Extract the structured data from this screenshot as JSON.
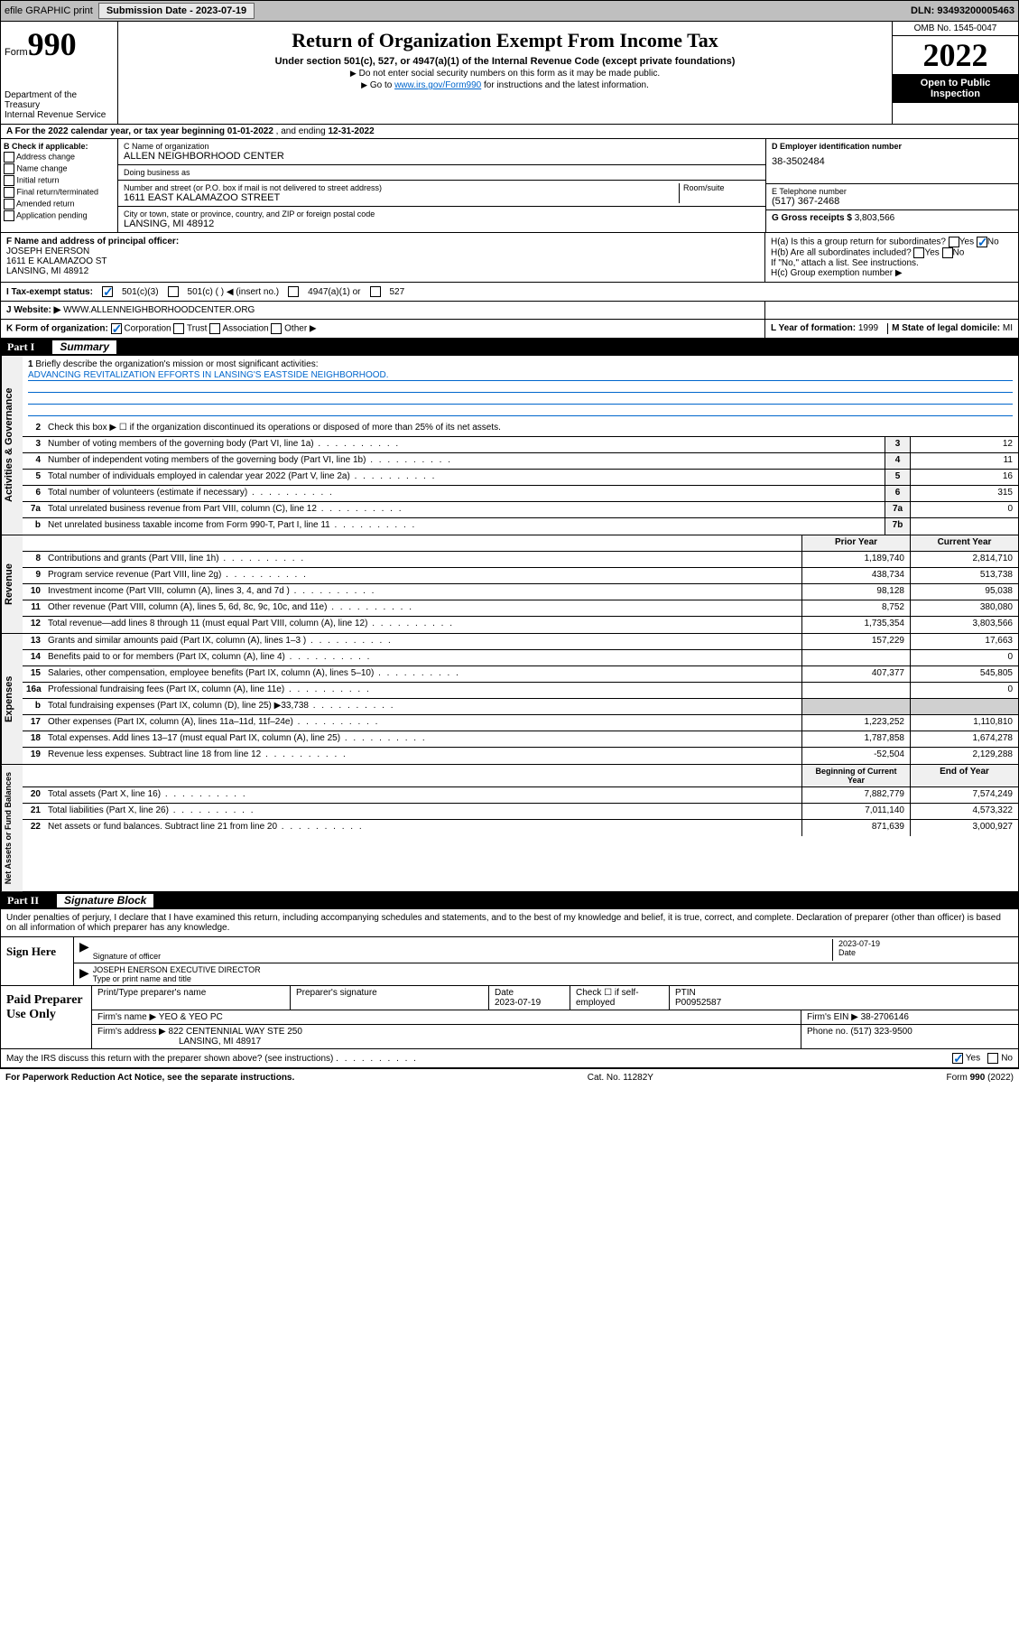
{
  "topbar": {
    "efile": "efile GRAPHIC print",
    "subDate_lbl": "Submission Date - ",
    "subDate": "2023-07-19",
    "dln_lbl": "DLN: ",
    "dln": "93493200005463"
  },
  "header": {
    "form_lbl": "Form",
    "form_num": "990",
    "title": "Return of Organization Exempt From Income Tax",
    "sub": "Under section 501(c), 527, or 4947(a)(1) of the Internal Revenue Code (except private foundations)",
    "note1": "Do not enter social security numbers on this form as it may be made public.",
    "note2_pre": "Go to ",
    "note2_link": "www.irs.gov/Form990",
    "note2_post": " for instructions and the latest information.",
    "dept": "Department of the Treasury\nInternal Revenue Service",
    "omb": "OMB No. 1545-0047",
    "year": "2022",
    "inspect": "Open to Public Inspection"
  },
  "rowA": {
    "pre": "A For the 2022 calendar year, or tax year beginning ",
    "begin": "01-01-2022",
    "mid": " , and ending ",
    "end": "12-31-2022"
  },
  "checkB": {
    "lbl": "B Check if applicable:",
    "items": [
      "Address change",
      "Name change",
      "Initial return",
      "Final return/terminated",
      "Amended return",
      "Application pending"
    ]
  },
  "boxC": {
    "name_lbl": "C Name of organization",
    "name": "ALLEN NEIGHBORHOOD CENTER",
    "dba_lbl": "Doing business as",
    "dba": "",
    "street_lbl": "Number and street (or P.O. box if mail is not delivered to street address)",
    "room_lbl": "Room/suite",
    "street": "1611 EAST KALAMAZOO STREET",
    "city_lbl": "City or town, state or province, country, and ZIP or foreign postal code",
    "city": "LANSING, MI  48912"
  },
  "boxD": {
    "lbl": "D Employer identification number",
    "val": "38-3502484"
  },
  "boxE": {
    "lbl": "E Telephone number",
    "val": "(517) 367-2468"
  },
  "boxG": {
    "lbl": "G Gross receipts $ ",
    "val": "3,803,566"
  },
  "boxF": {
    "lbl": "F Name and address of principal officer:",
    "name": "JOSEPH ENERSON",
    "addr1": "1611 E KALAMAZOO ST",
    "addr2": "LANSING, MI  48912"
  },
  "boxH": {
    "a": "H(a)  Is this a group return for subordinates?",
    "a_yes": "Yes",
    "a_no": "No",
    "b": "H(b)  Are all subordinates included?",
    "b_yes": "Yes",
    "b_no": "No",
    "b_note": "If \"No,\" attach a list. See instructions.",
    "c": "H(c)  Group exemption number ▶"
  },
  "rowI": {
    "lbl": "I  Tax-exempt status:",
    "c3": "501(c)(3)",
    "c": "501(c) (  ) ◀ (insert no.)",
    "a1": "4947(a)(1) or",
    "527": "527"
  },
  "rowJ": {
    "lbl": "J  Website: ▶",
    "val": "WWW.ALLENNEIGHBORHOODCENTER.ORG"
  },
  "rowK": {
    "lbl": "K Form of organization:",
    "corp": "Corporation",
    "trust": "Trust",
    "assoc": "Association",
    "other": "Other ▶"
  },
  "rowL": {
    "lbl": "L Year of formation: ",
    "val": "1999"
  },
  "rowM": {
    "lbl": "M State of legal domicile: ",
    "val": "MI"
  },
  "part1": {
    "num": "Part I",
    "title": "Summary"
  },
  "mission": {
    "num": "1",
    "lbl": "Briefly describe the organization's mission or most significant activities:",
    "text": "ADVANCING REVITALIZATION EFFORTS IN LANSING'S EASTSIDE NEIGHBORHOOD."
  },
  "line2": {
    "num": "2",
    "desc": "Check this box ▶ ☐  if the organization discontinued its operations or disposed of more than 25% of its net assets."
  },
  "gov_lines": [
    {
      "num": "3",
      "desc": "Number of voting members of the governing body (Part VI, line 1a)",
      "box": "3",
      "val": "12"
    },
    {
      "num": "4",
      "desc": "Number of independent voting members of the governing body (Part VI, line 1b)",
      "box": "4",
      "val": "11"
    },
    {
      "num": "5",
      "desc": "Total number of individuals employed in calendar year 2022 (Part V, line 2a)",
      "box": "5",
      "val": "16"
    },
    {
      "num": "6",
      "desc": "Total number of volunteers (estimate if necessary)",
      "box": "6",
      "val": "315"
    },
    {
      "num": "7a",
      "desc": "Total unrelated business revenue from Part VIII, column (C), line 12",
      "box": "7a",
      "val": "0"
    },
    {
      "num": "b",
      "desc": "Net unrelated business taxable income from Form 990-T, Part I, line 11",
      "box": "7b",
      "val": ""
    }
  ],
  "py_lbl": "Prior Year",
  "cy_lbl": "Current Year",
  "rev_lines": [
    {
      "num": "8",
      "desc": "Contributions and grants (Part VIII, line 1h)",
      "py": "1,189,740",
      "cy": "2,814,710"
    },
    {
      "num": "9",
      "desc": "Program service revenue (Part VIII, line 2g)",
      "py": "438,734",
      "cy": "513,738"
    },
    {
      "num": "10",
      "desc": "Investment income (Part VIII, column (A), lines 3, 4, and 7d )",
      "py": "98,128",
      "cy": "95,038"
    },
    {
      "num": "11",
      "desc": "Other revenue (Part VIII, column (A), lines 5, 6d, 8c, 9c, 10c, and 11e)",
      "py": "8,752",
      "cy": "380,080"
    },
    {
      "num": "12",
      "desc": "Total revenue—add lines 8 through 11 (must equal Part VIII, column (A), line 12)",
      "py": "1,735,354",
      "cy": "3,803,566"
    }
  ],
  "exp_lines": [
    {
      "num": "13",
      "desc": "Grants and similar amounts paid (Part IX, column (A), lines 1–3 )",
      "py": "157,229",
      "cy": "17,663"
    },
    {
      "num": "14",
      "desc": "Benefits paid to or for members (Part IX, column (A), line 4)",
      "py": "",
      "cy": "0"
    },
    {
      "num": "15",
      "desc": "Salaries, other compensation, employee benefits (Part IX, column (A), lines 5–10)",
      "py": "407,377",
      "cy": "545,805"
    },
    {
      "num": "16a",
      "desc": "Professional fundraising fees (Part IX, column (A), line 11e)",
      "py": "",
      "cy": "0"
    },
    {
      "num": "b",
      "desc": "Total fundraising expenses (Part IX, column (D), line 25) ▶33,738",
      "py": "–",
      "cy": "–"
    },
    {
      "num": "17",
      "desc": "Other expenses (Part IX, column (A), lines 11a–11d, 11f–24e)",
      "py": "1,223,252",
      "cy": "1,110,810"
    },
    {
      "num": "18",
      "desc": "Total expenses. Add lines 13–17 (must equal Part IX, column (A), line 25)",
      "py": "1,787,858",
      "cy": "1,674,278"
    },
    {
      "num": "19",
      "desc": "Revenue less expenses. Subtract line 18 from line 12",
      "py": "-52,504",
      "cy": "2,129,288"
    }
  ],
  "bcy_lbl": "Beginning of Current Year",
  "eoy_lbl": "End of Year",
  "na_lines": [
    {
      "num": "20",
      "desc": "Total assets (Part X, line 16)",
      "py": "7,882,779",
      "cy": "7,574,249"
    },
    {
      "num": "21",
      "desc": "Total liabilities (Part X, line 26)",
      "py": "7,011,140",
      "cy": "4,573,322"
    },
    {
      "num": "22",
      "desc": "Net assets or fund balances. Subtract line 21 from line 20",
      "py": "871,639",
      "cy": "3,000,927"
    }
  ],
  "part2": {
    "num": "Part II",
    "title": "Signature Block"
  },
  "perjury": "Under penalties of perjury, I declare that I have examined this return, including accompanying schedules and statements, and to the best of my knowledge and belief, it is true, correct, and complete. Declaration of preparer (other than officer) is based on all information of which preparer has any knowledge.",
  "sign": {
    "here": "Sign Here",
    "sig_lbl": "Signature of officer",
    "date": "2023-07-19",
    "date_lbl": "Date",
    "name": "JOSEPH ENERSON  EXECUTIVE DIRECTOR",
    "name_lbl": "Type or print name and title"
  },
  "prep": {
    "use": "Paid Preparer Use Only",
    "h1": "Print/Type preparer's name",
    "h2": "Preparer's signature",
    "h3": "Date",
    "h3v": "2023-07-19",
    "h4": "Check ☐ if self-employed",
    "h5": "PTIN",
    "h5v": "P00952587",
    "firm_lbl": "Firm's name    ▶",
    "firm": "YEO & YEO PC",
    "ein_lbl": "Firm's EIN ▶",
    "ein": "38-2706146",
    "addr_lbl": "Firm's address ▶",
    "addr1": "822 CENTENNIAL WAY STE 250",
    "addr2": "LANSING, MI  48917",
    "phone_lbl": "Phone no. ",
    "phone": "(517) 323-9500"
  },
  "discuss": {
    "q": "May the IRS discuss this return with the preparer shown above? (see instructions)",
    "yes": "Yes",
    "no": "No"
  },
  "footer": {
    "pra": "For Paperwork Reduction Act Notice, see the separate instructions.",
    "cat": "Cat. No. 11282Y",
    "form": "Form 990 (2022)"
  }
}
